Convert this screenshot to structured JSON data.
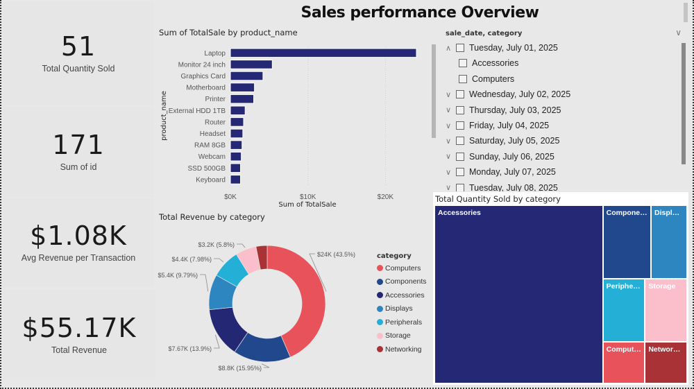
{
  "page": {
    "title": "Sales performance Overview"
  },
  "cards": [
    {
      "value": "51",
      "label": "Total Quantity Sold"
    },
    {
      "value": "171",
      "label": "Sum of id"
    },
    {
      "value": "$1.08K",
      "label": "Avg Revenue per Transaction"
    },
    {
      "value": "$55.17K",
      "label": "Total Revenue"
    }
  ],
  "chart_data": [
    {
      "type": "bar",
      "orientation": "horizontal",
      "title": "Sum of TotalSale by product_name",
      "xlabel": "Sum of TotalSale",
      "ylabel": "product_name",
      "categories": [
        "Laptop",
        "Monitor 24 inch",
        "Graphics Card",
        "Motherboard",
        "Printer",
        "External HDD 1TB",
        "Router",
        "Headset",
        "RAM 8GB",
        "Webcam",
        "SSD 500GB",
        "Keyboard"
      ],
      "values": [
        24000,
        5400,
        4200,
        3100,
        3000,
        1900,
        1700,
        1600,
        1500,
        1400,
        1300,
        1300
      ],
      "xticks": [
        "$0K",
        "$10K",
        "$20K"
      ],
      "xtick_values": [
        0,
        10000,
        20000
      ],
      "xlim": [
        0,
        24000
      ],
      "grid": true,
      "color": "#252874"
    },
    {
      "type": "pie",
      "variant": "donut",
      "title": "Total Revenue by category",
      "legend_title": "category",
      "legend_position": "right",
      "slices": [
        {
          "name": "Computers",
          "value": 24000,
          "label": "$24K (43.5%)",
          "color": "#e8525a"
        },
        {
          "name": "Components",
          "value": 8800,
          "label": "$8.8K (15.95%)",
          "color": "#21478c"
        },
        {
          "name": "Accessories",
          "value": 7670,
          "label": "$7.67K (13.9%)",
          "color": "#242774"
        },
        {
          "name": "Displays",
          "value": 5400,
          "label": "$5.4K (9.79%)",
          "color": "#2e86c1"
        },
        {
          "name": "Peripherals",
          "value": 4400,
          "label": "$4.4K (7.98%)",
          "color": "#24b0d6"
        },
        {
          "name": "Storage",
          "value": 3200,
          "label": "$3.2K (5.8%)",
          "color": "#fbbfcc"
        },
        {
          "name": "Networking",
          "value": 1700,
          "label": "",
          "color": "#a93237"
        }
      ]
    },
    {
      "type": "treemap",
      "title": "Total Quantity Sold by category",
      "items": [
        {
          "name": "Accessories",
          "label": "Accessories",
          "value": 34,
          "color": "#252874"
        },
        {
          "name": "Components",
          "label": "Components",
          "value": 4,
          "color": "#21478c"
        },
        {
          "name": "Displays",
          "label": "Displays",
          "value": 3,
          "color": "#2e86c1"
        },
        {
          "name": "Peripherals",
          "label": "Peripherals",
          "value": 3,
          "color": "#24b0d6"
        },
        {
          "name": "Storage",
          "label": "Storage",
          "value": 3,
          "color": "#fbbfcc"
        },
        {
          "name": "Computers",
          "label": "Computers",
          "value": 2,
          "color": "#e8525a"
        },
        {
          "name": "Networking",
          "label": "Networki...",
          "value": 2,
          "color": "#a93237"
        }
      ]
    }
  ],
  "slicer": {
    "header": "sale_date, category",
    "items": [
      {
        "label": "Tuesday, July 01, 2025",
        "level": 0,
        "expanded": true,
        "checked": false
      },
      {
        "label": "Accessories",
        "level": 1,
        "checked": false
      },
      {
        "label": "Computers",
        "level": 1,
        "checked": false
      },
      {
        "label": "Wednesday, July 02, 2025",
        "level": 0,
        "expanded": false,
        "checked": false
      },
      {
        "label": "Thursday, July 03, 2025",
        "level": 0,
        "expanded": false,
        "checked": false
      },
      {
        "label": "Friday, July 04, 2025",
        "level": 0,
        "expanded": false,
        "checked": false
      },
      {
        "label": "Saturday, July 05, 2025",
        "level": 0,
        "expanded": false,
        "checked": false
      },
      {
        "label": "Sunday, July 06, 2025",
        "level": 0,
        "expanded": false,
        "checked": false
      },
      {
        "label": "Monday, July 07, 2025",
        "level": 0,
        "expanded": false,
        "checked": false
      },
      {
        "label": "Tuesday, July 08, 2025",
        "level": 0,
        "expanded": false,
        "checked": false
      }
    ]
  },
  "icons": {
    "expanded": "chevron-up-icon",
    "collapsed": "chevron-down-icon"
  }
}
